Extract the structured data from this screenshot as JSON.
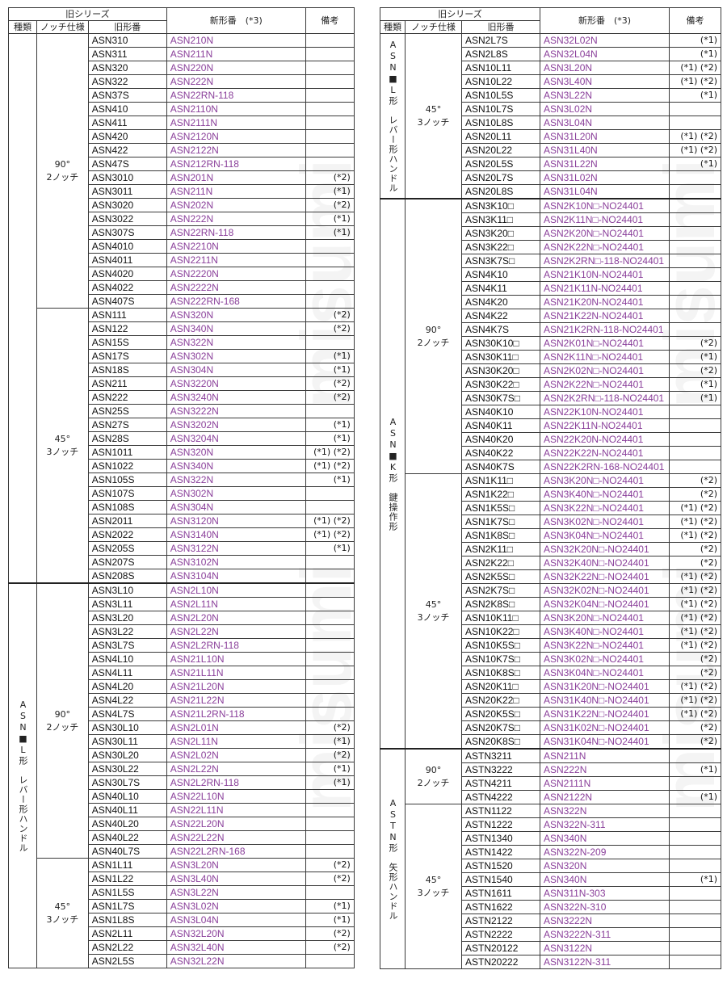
{
  "headers": {
    "old_series": "旧シリーズ",
    "type": "種類",
    "notch": "ノッチ仕様",
    "old_model": "旧形番",
    "new_model": "新形番　(*3)",
    "remarks": "備考"
  },
  "watermark": "misumi",
  "left": {
    "groups": [
      {
        "type": "",
        "subs": [
          {
            "notch": "90°\n2ノッチ",
            "rows": [
              [
                "ASN310",
                "ASN210N",
                ""
              ],
              [
                "ASN311",
                "ASN211N",
                ""
              ],
              [
                "ASN320",
                "ASN220N",
                ""
              ],
              [
                "ASN322",
                "ASN222N",
                ""
              ],
              [
                "ASN37S",
                "ASN22RN-118",
                ""
              ],
              [
                "ASN410",
                "ASN2110N",
                ""
              ],
              [
                "ASN411",
                "ASN2111N",
                ""
              ],
              [
                "ASN420",
                "ASN2120N",
                ""
              ],
              [
                "ASN422",
                "ASN2122N",
                ""
              ],
              [
                "ASN47S",
                "ASN212RN-118",
                ""
              ],
              [
                "ASN3010",
                "ASN201N",
                "(*2)"
              ],
              [
                "ASN3011",
                "ASN211N",
                "(*1)"
              ],
              [
                "ASN3020",
                "ASN202N",
                "(*2)"
              ],
              [
                "ASN3022",
                "ASN222N",
                "(*1)"
              ],
              [
                "ASN307S",
                "ASN22RN-118",
                "(*1)"
              ],
              [
                "ASN4010",
                "ASN2210N",
                ""
              ],
              [
                "ASN4011",
                "ASN2211N",
                ""
              ],
              [
                "ASN4020",
                "ASN2220N",
                ""
              ],
              [
                "ASN4022",
                "ASN2222N",
                ""
              ],
              [
                "ASN407S",
                "ASN222RN-168",
                ""
              ]
            ]
          },
          {
            "notch": "45°\n3ノッチ",
            "rows": [
              [
                "ASN111",
                "ASN320N",
                "(*2)"
              ],
              [
                "ASN122",
                "ASN340N",
                "(*2)"
              ],
              [
                "ASN15S",
                "ASN322N",
                ""
              ],
              [
                "ASN17S",
                "ASN302N",
                "(*1)"
              ],
              [
                "ASN18S",
                "ASN304N",
                "(*1)"
              ],
              [
                "ASN211",
                "ASN3220N",
                "(*2)"
              ],
              [
                "ASN222",
                "ASN3240N",
                "(*2)"
              ],
              [
                "ASN25S",
                "ASN3222N",
                ""
              ],
              [
                "ASN27S",
                "ASN3202N",
                "(*1)"
              ],
              [
                "ASN28S",
                "ASN3204N",
                "(*1)"
              ],
              [
                "ASN1011",
                "ASN320N",
                "(*1) (*2)"
              ],
              [
                "ASN1022",
                "ASN340N",
                "(*1) (*2)"
              ],
              [
                "ASN105S",
                "ASN322N",
                "(*1)"
              ],
              [
                "ASN107S",
                "ASN302N",
                ""
              ],
              [
                "ASN108S",
                "ASN304N",
                ""
              ],
              [
                "ASN2011",
                "ASN3120N",
                "(*1) (*2)"
              ],
              [
                "ASN2022",
                "ASN3140N",
                "(*1) (*2)"
              ],
              [
                "ASN205S",
                "ASN3122N",
                "(*1)"
              ],
              [
                "ASN207S",
                "ASN3102N",
                ""
              ],
              [
                "ASN208S",
                "ASN3104N",
                ""
              ]
            ]
          }
        ]
      },
      {
        "type": "ASN■L形　レバー形ハンドル",
        "subs": [
          {
            "notch": "90°\n2ノッチ",
            "rows": [
              [
                "ASN3L10",
                "ASN2L10N",
                ""
              ],
              [
                "ASN3L11",
                "ASN2L11N",
                ""
              ],
              [
                "ASN3L20",
                "ASN2L20N",
                ""
              ],
              [
                "ASN3L22",
                "ASN2L22N",
                ""
              ],
              [
                "ASN3L7S",
                "ASN2L2RN-118",
                ""
              ],
              [
                "ASN4L10",
                "ASN21L10N",
                ""
              ],
              [
                "ASN4L11",
                "ASN21L11N",
                ""
              ],
              [
                "ASN4L20",
                "ASN21L20N",
                ""
              ],
              [
                "ASN4L22",
                "ASN21L22N",
                ""
              ],
              [
                "ASN4L7S",
                "ASN21L2RN-118",
                ""
              ],
              [
                "ASN30L10",
                "ASN2L01N",
                "(*2)"
              ],
              [
                "ASN30L11",
                "ASN2L11N",
                "(*1)"
              ],
              [
                "ASN30L20",
                "ASN2L02N",
                "(*2)"
              ],
              [
                "ASN30L22",
                "ASN2L22N",
                "(*1)"
              ],
              [
                "ASN30L7S",
                "ASN2L2RN-118",
                "(*1)"
              ],
              [
                "ASN40L10",
                "ASN22L10N",
                ""
              ],
              [
                "ASN40L11",
                "ASN22L11N",
                ""
              ],
              [
                "ASN40L20",
                "ASN22L20N",
                ""
              ],
              [
                "ASN40L22",
                "ASN22L22N",
                ""
              ],
              [
                "ASN40L7S",
                "ASN22L2RN-168",
                ""
              ]
            ]
          },
          {
            "notch": "45°\n3ノッチ",
            "rows": [
              [
                "ASN1L11",
                "ASN3L20N",
                "(*2)"
              ],
              [
                "ASN1L22",
                "ASN3L40N",
                "(*2)"
              ],
              [
                "ASN1L5S",
                "ASN3L22N",
                ""
              ],
              [
                "ASN1L7S",
                "ASN3L02N",
                "(*1)"
              ],
              [
                "ASN1L8S",
                "ASN3L04N",
                "(*1)"
              ],
              [
                "ASN2L11",
                "ASN32L20N",
                "(*2)"
              ],
              [
                "ASN2L22",
                "ASN32L40N",
                "(*2)"
              ],
              [
                "ASN2L5S",
                "ASN32L22N",
                ""
              ]
            ]
          }
        ]
      }
    ]
  },
  "right": {
    "groups": [
      {
        "type": "ASN■L形　レバー形ハンドル",
        "subs": [
          {
            "notch": "45°\n3ノッチ",
            "rows": [
              [
                "ASN2L7S",
                "ASN32L02N",
                "(*1)"
              ],
              [
                "ASN2L8S",
                "ASN32L04N",
                "(*1)"
              ],
              [
                "ASN10L11",
                "ASN3L20N",
                "(*1) (*2)"
              ],
              [
                "ASN10L22",
                "ASN3L40N",
                "(*1) (*2)"
              ],
              [
                "ASN10L5S",
                "ASN3L22N",
                "(*1)"
              ],
              [
                "ASN10L7S",
                "ASN3L02N",
                ""
              ],
              [
                "ASN10L8S",
                "ASN3L04N",
                ""
              ],
              [
                "ASN20L11",
                "ASN31L20N",
                "(*1) (*2)"
              ],
              [
                "ASN20L22",
                "ASN31L40N",
                "(*1) (*2)"
              ],
              [
                "ASN20L5S",
                "ASN31L22N",
                "(*1)"
              ],
              [
                "ASN20L7S",
                "ASN31L02N",
                ""
              ],
              [
                "ASN20L8S",
                "ASN31L04N",
                ""
              ]
            ]
          }
        ]
      },
      {
        "type": "ASN■K形　鍵操作形",
        "subs": [
          {
            "notch": "90°\n2ノッチ",
            "rows": [
              [
                "ASN3K10□",
                "ASN2K10N□-NO24401",
                ""
              ],
              [
                "ASN3K11□",
                "ASN2K11N□-NO24401",
                ""
              ],
              [
                "ASN3K20□",
                "ASN2K20N□-NO24401",
                ""
              ],
              [
                "ASN3K22□",
                "ASN2K22N□-NO24401",
                ""
              ],
              [
                "ASN3K7S□",
                "ASN2K2RN□-118-NO24401",
                ""
              ],
              [
                "ASN4K10",
                "ASN21K10N-NO24401",
                ""
              ],
              [
                "ASN4K11",
                "ASN21K11N-NO24401",
                ""
              ],
              [
                "ASN4K20",
                "ASN21K20N-NO24401",
                ""
              ],
              [
                "ASN4K22",
                "ASN21K22N-NO24401",
                ""
              ],
              [
                "ASN4K7S",
                "ASN21K2RN-118-NO24401",
                ""
              ],
              [
                "ASN30K10□",
                "ASN2K01N□-NO24401",
                "(*2)"
              ],
              [
                "ASN30K11□",
                "ASN2K11N□-NO24401",
                "(*1)"
              ],
              [
                "ASN30K20□",
                "ASN2K02N□-NO24401",
                "(*2)"
              ],
              [
                "ASN30K22□",
                "ASN2K22N□-NO24401",
                "(*1)"
              ],
              [
                "ASN30K7S□",
                "ASN2K2RN□-118-NO24401",
                "(*1)"
              ],
              [
                "ASN40K10",
                "ASN22K10N-NO24401",
                ""
              ],
              [
                "ASN40K11",
                "ASN22K11N-NO24401",
                ""
              ],
              [
                "ASN40K20",
                "ASN22K20N-NO24401",
                ""
              ],
              [
                "ASN40K22",
                "ASN22K22N-NO24401",
                ""
              ],
              [
                "ASN40K7S",
                "ASN22K2RN-168-NO24401",
                ""
              ]
            ]
          },
          {
            "notch": "45°\n3ノッチ",
            "rows": [
              [
                "ASN1K11□",
                "ASN3K20N□-NO24401",
                "(*2)"
              ],
              [
                "ASN1K22□",
                "ASN3K40N□-NO24401",
                "(*2)"
              ],
              [
                "ASN1K5S□",
                "ASN3K22N□-NO24401",
                "(*1) (*2)"
              ],
              [
                "ASN1K7S□",
                "ASN3K02N□-NO24401",
                "(*1) (*2)"
              ],
              [
                "ASN1K8S□",
                "ASN3K04N□-NO24401",
                "(*1) (*2)"
              ],
              [
                "ASN2K11□",
                "ASN32K20N□-NO24401",
                "(*2)"
              ],
              [
                "ASN2K22□",
                "ASN32K40N□-NO24401",
                "(*2)"
              ],
              [
                "ASN2K5S□",
                "ASN32K22N□-NO24401",
                "(*1) (*2)"
              ],
              [
                "ASN2K7S□",
                "ASN32K02N□-NO24401",
                "(*1) (*2)"
              ],
              [
                "ASN2K8S□",
                "ASN32K04N□-NO24401",
                "(*1) (*2)"
              ],
              [
                "ASN10K11□",
                "ASN3K20N□-NO24401",
                "(*1) (*2)"
              ],
              [
                "ASN10K22□",
                "ASN3K40N□-NO24401",
                "(*1) (*2)"
              ],
              [
                "ASN10K5S□",
                "ASN3K22N□-NO24401",
                "(*1) (*2)"
              ],
              [
                "ASN10K7S□",
                "ASN3K02N□-NO24401",
                "(*2)"
              ],
              [
                "ASN10K8S□",
                "ASN3K04N□-NO24401",
                "(*2)"
              ],
              [
                "ASN20K11□",
                "ASN31K20N□-NO24401",
                "(*1) (*2)"
              ],
              [
                "ASN20K22□",
                "ASN31K40N□-NO24401",
                "(*1) (*2)"
              ],
              [
                "ASN20K5S□",
                "ASN31K22N□-NO24401",
                "(*1) (*2)"
              ],
              [
                "ASN20K7S□",
                "ASN31K02N□-NO24401",
                "(*2)"
              ],
              [
                "ASN20K8S□",
                "ASN31K04N□-NO24401",
                "(*2)"
              ]
            ]
          }
        ]
      },
      {
        "type": "ASTN形　矢形ハンドル",
        "subs": [
          {
            "notch": "90°\n2ノッチ",
            "rows": [
              [
                "ASTN3211",
                "ASN211N",
                ""
              ],
              [
                "ASTN3222",
                "ASN222N",
                "(*1)"
              ],
              [
                "ASTN4211",
                "ASN2111N",
                ""
              ],
              [
                "ASTN4222",
                "ASN2122N",
                "(*1)"
              ]
            ]
          },
          {
            "notch": "45°\n3ノッチ",
            "rows": [
              [
                "ASTN1122",
                "ASN322N",
                ""
              ],
              [
                "ASTN1222",
                "ASN322N-311",
                ""
              ],
              [
                "ASTN1340",
                "ASN340N",
                ""
              ],
              [
                "ASTN1422",
                "ASN322N-209",
                ""
              ],
              [
                "ASTN1520",
                "ASN320N",
                ""
              ],
              [
                "ASTN1540",
                "ASN340N",
                "(*1)"
              ],
              [
                "ASTN1611",
                "ASN311N-303",
                ""
              ],
              [
                "ASTN1622",
                "ASN322N-310",
                ""
              ],
              [
                "ASTN2122",
                "ASN3222N",
                ""
              ],
              [
                "ASTN2222",
                "ASN3222N-311",
                ""
              ],
              [
                "ASTN20122",
                "ASN3122N",
                ""
              ],
              [
                "ASTN20222",
                "ASN3122N-311",
                ""
              ]
            ]
          }
        ]
      }
    ]
  }
}
